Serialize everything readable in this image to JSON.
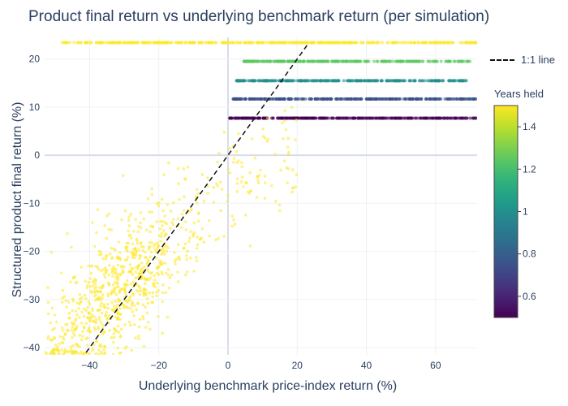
{
  "chart_data": {
    "type": "scatter",
    "title": "Product final return vs underlying benchmark return (per simulation)",
    "xlabel": "Underlying benchmark price-index return (%)",
    "ylabel": "Structured product final return (%)",
    "xlim": [
      -53,
      72
    ],
    "ylim": [
      -41.5,
      24.5
    ],
    "x_ticks": [
      -40,
      -20,
      0,
      20,
      40,
      60
    ],
    "y_ticks": [
      -40,
      -30,
      -20,
      -10,
      0,
      10,
      20
    ],
    "grid": true,
    "color_by": "Years held",
    "colorscale": "viridis",
    "color_range": [
      0.5,
      1.5
    ],
    "colorbar_ticks": [
      0.6,
      0.8,
      1,
      1.2,
      1.4
    ],
    "reference_line": {
      "name": "1:1 line",
      "x": [
        -41,
        23
      ],
      "y": [
        -41,
        23
      ]
    },
    "series": [
      {
        "years_held": 0.5,
        "y": 7.7,
        "x_range": [
          0.5,
          72
        ],
        "n": 340
      },
      {
        "years_held": 0.75,
        "y": 11.7,
        "x_range": [
          1.5,
          72
        ],
        "n": 320
      },
      {
        "years_held": 1.0,
        "y": 15.5,
        "x_range": [
          2.5,
          69
        ],
        "n": 300
      },
      {
        "years_held": 1.25,
        "y": 19.5,
        "x_range": [
          4.5,
          70
        ],
        "n": 280
      },
      {
        "years_held": 1.5,
        "y": 23.4,
        "x_range": [
          -48,
          72
        ],
        "n": 360
      },
      {
        "years_held": 1.5,
        "type": "loss_cloud",
        "n": 900,
        "x_range": [
          -53,
          20
        ],
        "y_range": [
          -41.5,
          10
        ]
      }
    ]
  },
  "legend": {
    "label": "1:1 line"
  },
  "colorbar": {
    "title": "Years held"
  }
}
